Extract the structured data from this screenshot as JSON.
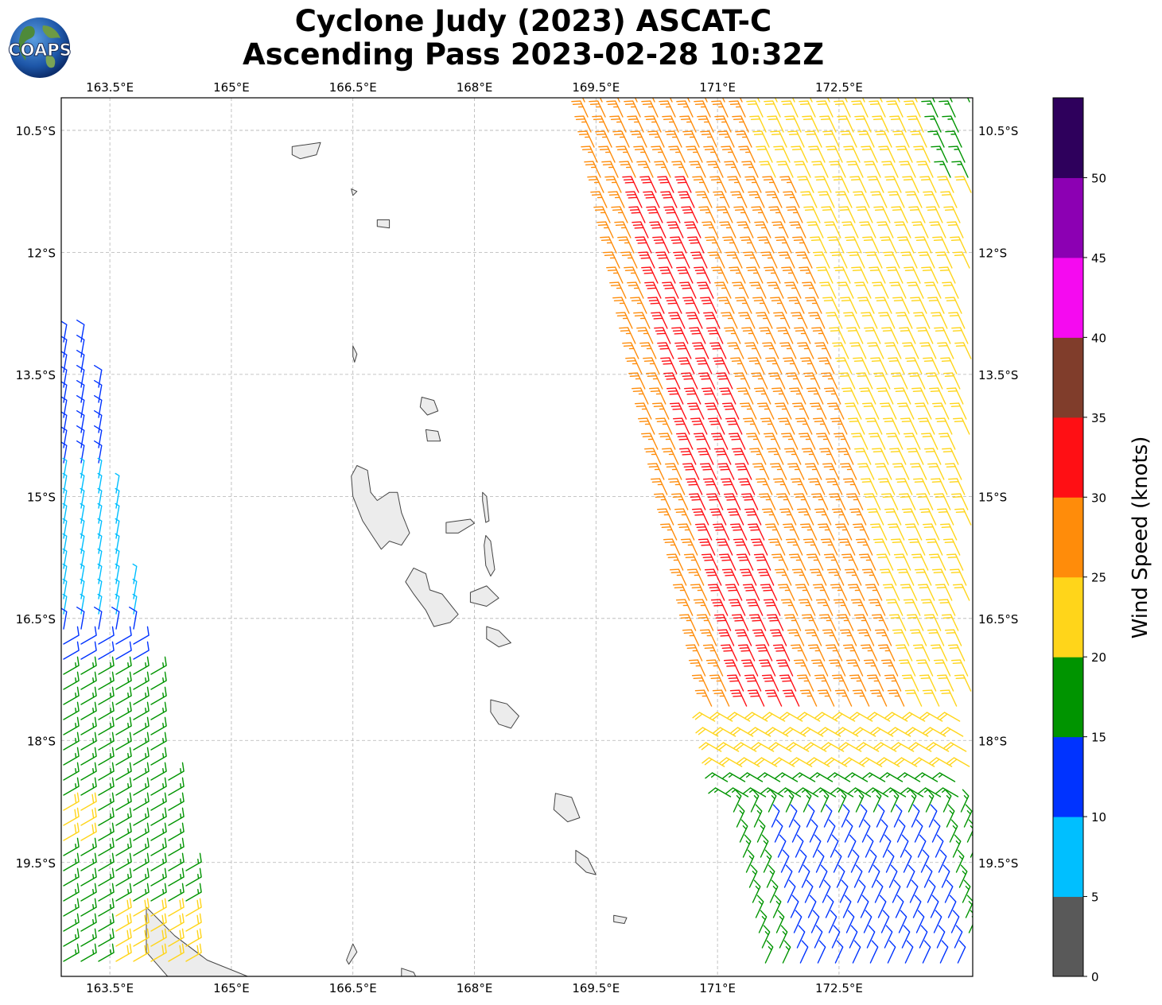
{
  "header": {
    "title_line1": "Cyclone Judy (2023) ASCAT-C",
    "title_line2": "Ascending Pass 2023-02-28 10:32Z",
    "logo_text": "COAPS",
    "logo_icon": "coaps-globe-logo"
  },
  "map": {
    "lon_range": [
      162.9,
      174.15
    ],
    "lat_range": [
      -10.1,
      -20.9
    ],
    "lon_ticks": [
      {
        "value": 163.5,
        "label": "163.5°E"
      },
      {
        "value": 165.0,
        "label": "165°E"
      },
      {
        "value": 166.5,
        "label": "166.5°E"
      },
      {
        "value": 168.0,
        "label": "168°E"
      },
      {
        "value": 169.5,
        "label": "169.5°E"
      },
      {
        "value": 171.0,
        "label": "171°E"
      },
      {
        "value": 172.5,
        "label": "172.5°E"
      }
    ],
    "lat_ticks": [
      {
        "value": -10.5,
        "label": "10.5°S"
      },
      {
        "value": -12.0,
        "label": "12°S"
      },
      {
        "value": -13.5,
        "label": "13.5°S"
      },
      {
        "value": -15.0,
        "label": "15°S"
      },
      {
        "value": -16.5,
        "label": "16.5°S"
      },
      {
        "value": -18.0,
        "label": "18°S"
      },
      {
        "value": -19.5,
        "label": "19.5°S"
      }
    ],
    "gridlines": true,
    "land_fill": "#ececec",
    "coast_color": "#444444"
  },
  "colorbar": {
    "title": "Wind Speed (knots)",
    "ticks": [
      "0",
      "5",
      "10",
      "15",
      "20",
      "25",
      "30",
      "35",
      "40",
      "45",
      "50"
    ],
    "bins": [
      {
        "min": 0,
        "max": 5,
        "color": "#595959"
      },
      {
        "min": 5,
        "max": 10,
        "color": "#00bfff"
      },
      {
        "min": 10,
        "max": 15,
        "color": "#0033ff"
      },
      {
        "min": 15,
        "max": 20,
        "color": "#009400"
      },
      {
        "min": 20,
        "max": 25,
        "color": "#ffd51a"
      },
      {
        "min": 25,
        "max": 30,
        "color": "#ff8c0a"
      },
      {
        "min": 30,
        "max": 35,
        "color": "#ff0f14"
      },
      {
        "min": 35,
        "max": 40,
        "color": "#803d2b"
      },
      {
        "min": 40,
        "max": 45,
        "color": "#f50af0"
      },
      {
        "min": 45,
        "max": 50,
        "color": "#8c00b3"
      },
      {
        "min": 50,
        "max": 55,
        "color": "#2e005c"
      }
    ]
  }
}
